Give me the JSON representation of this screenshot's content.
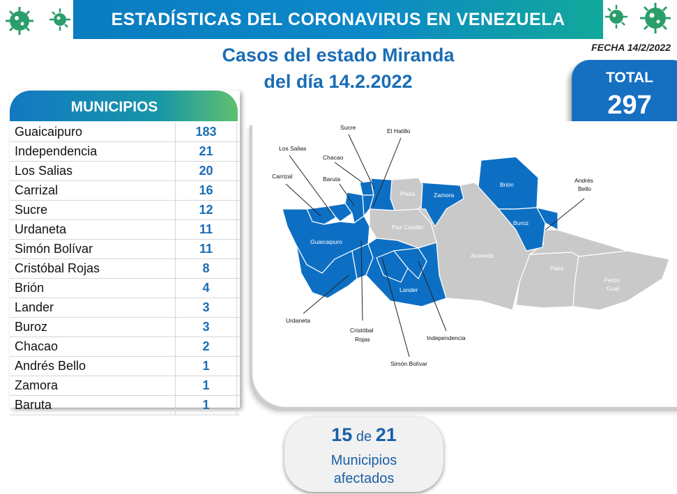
{
  "header": {
    "title": "ESTADÍSTICAS DEL CORONAVIRUS EN VENEZUELA"
  },
  "subtitle": {
    "line1": "Casos del estado Miranda",
    "line2": "del día 14.2.2022"
  },
  "date": "FECHA 14/2/2022",
  "total": {
    "label": "TOTAL",
    "value": "297"
  },
  "table": {
    "header": "MUNICIPIOS",
    "rows": [
      {
        "name": "Guaicaipuro",
        "value": "183"
      },
      {
        "name": "Independencia",
        "value": "21"
      },
      {
        "name": "Los Salias",
        "value": "20"
      },
      {
        "name": "Carrizal",
        "value": "16"
      },
      {
        "name": "Sucre",
        "value": "12"
      },
      {
        "name": "Urdaneta",
        "value": "11"
      },
      {
        "name": "Simón Bolívar",
        "value": "11"
      },
      {
        "name": "Cristóbal Rojas",
        "value": "8"
      },
      {
        "name": "Brión",
        "value": "4"
      },
      {
        "name": "Lander",
        "value": "3"
      },
      {
        "name": "Buroz",
        "value": "3"
      },
      {
        "name": "Chacao",
        "value": "2"
      },
      {
        "name": "Andrés Bello",
        "value": "1"
      },
      {
        "name": "Zamora",
        "value": "1"
      },
      {
        "name": "Baruta",
        "value": "1"
      }
    ]
  },
  "map": {
    "affected_color": "#0d6fc4",
    "unaffected_color": "#c9c9c9",
    "labels": {
      "sucre": "Sucre",
      "el_hatillo": "El Hatillo",
      "los_salias": "Los Salias",
      "chacao": "Chacao",
      "carrizal": "Carrizal",
      "baruta": "Baruta",
      "plaza": "Plaza",
      "zamora": "Zamora",
      "brion": "Brión",
      "andres_bello_1": "Andrés",
      "andres_bello_2": "Bello",
      "paz_castillo": "Paz Castillo",
      "buroz": "Buroz",
      "guaicaipuro": "Guaicaipuro",
      "acevedo": "Acevedo",
      "paez": "Páez",
      "pedro_gual_1": "Pedro",
      "pedro_gual_2": "Gual",
      "lander": "Lander",
      "urdaneta": "Urdaneta",
      "cristobal_rojas_1": "Cristóbal",
      "cristobal_rojas_2": "Rojas",
      "independencia": "Independencia",
      "simon_bolivar": "Simón Bolívar"
    }
  },
  "affected": {
    "count": "15",
    "connector": "de",
    "total": "21",
    "line2": "Municipios",
    "line3": "afectados"
  },
  "icons": [
    "virus-icon"
  ]
}
